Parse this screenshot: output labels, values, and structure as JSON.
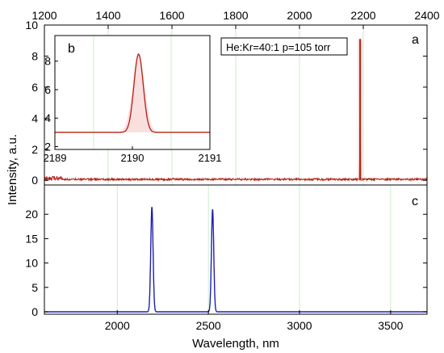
{
  "chart_data": [
    {
      "panel": "a",
      "type": "line",
      "panel_label": "a",
      "annotation": "He:Kr=40:1 p=105 torr",
      "x_top_ticks": [
        "1200",
        "1400",
        "1600",
        "1800",
        "2000",
        "2200",
        "2400"
      ],
      "xlim_top": [
        1200,
        2400
      ],
      "ylim": [
        -0.3,
        10
      ],
      "y_ticks": [
        "0",
        "2",
        "4",
        "6",
        "8",
        "10"
      ],
      "ylabel": "Intensity, a.u.",
      "grid": "vertical",
      "peaks": [
        {
          "x": 2190.1,
          "y": 9.1
        }
      ],
      "noise_region": {
        "x": [
          1200,
          2400
        ],
        "amplitude": 0.25
      },
      "series": [
        {
          "color": "#b22216"
        }
      ]
    },
    {
      "panel": "b",
      "type": "line",
      "panel_label": "b",
      "inset": true,
      "xlim": [
        2189,
        2191
      ],
      "x_ticks": [
        "2189",
        "2190",
        "2191"
      ],
      "ylim": [
        1.8,
        9.8
      ],
      "y_ticks": [
        "2",
        "4",
        "6",
        "8"
      ],
      "peak": {
        "x": 2190.08,
        "y": 8.5,
        "baseline": 3.0
      },
      "series": [
        {
          "color": "#b22216"
        }
      ]
    },
    {
      "panel": "c",
      "type": "line",
      "panel_label": "c",
      "xlim": [
        1600,
        3700
      ],
      "x_ticks": [
        "2000",
        "2500",
        "3000",
        "3500"
      ],
      "xlabel": "Wavelength, nm",
      "ylim": [
        -0.5,
        26
      ],
      "y_ticks": [
        "0",
        "5",
        "10",
        "15",
        "20"
      ],
      "grid": "vertical",
      "peaks": [
        {
          "x": 2190,
          "y": 21.5
        },
        {
          "x": 2523,
          "y": 21.0
        }
      ],
      "series": [
        {
          "color": "#1f1fb0"
        }
      ]
    }
  ]
}
